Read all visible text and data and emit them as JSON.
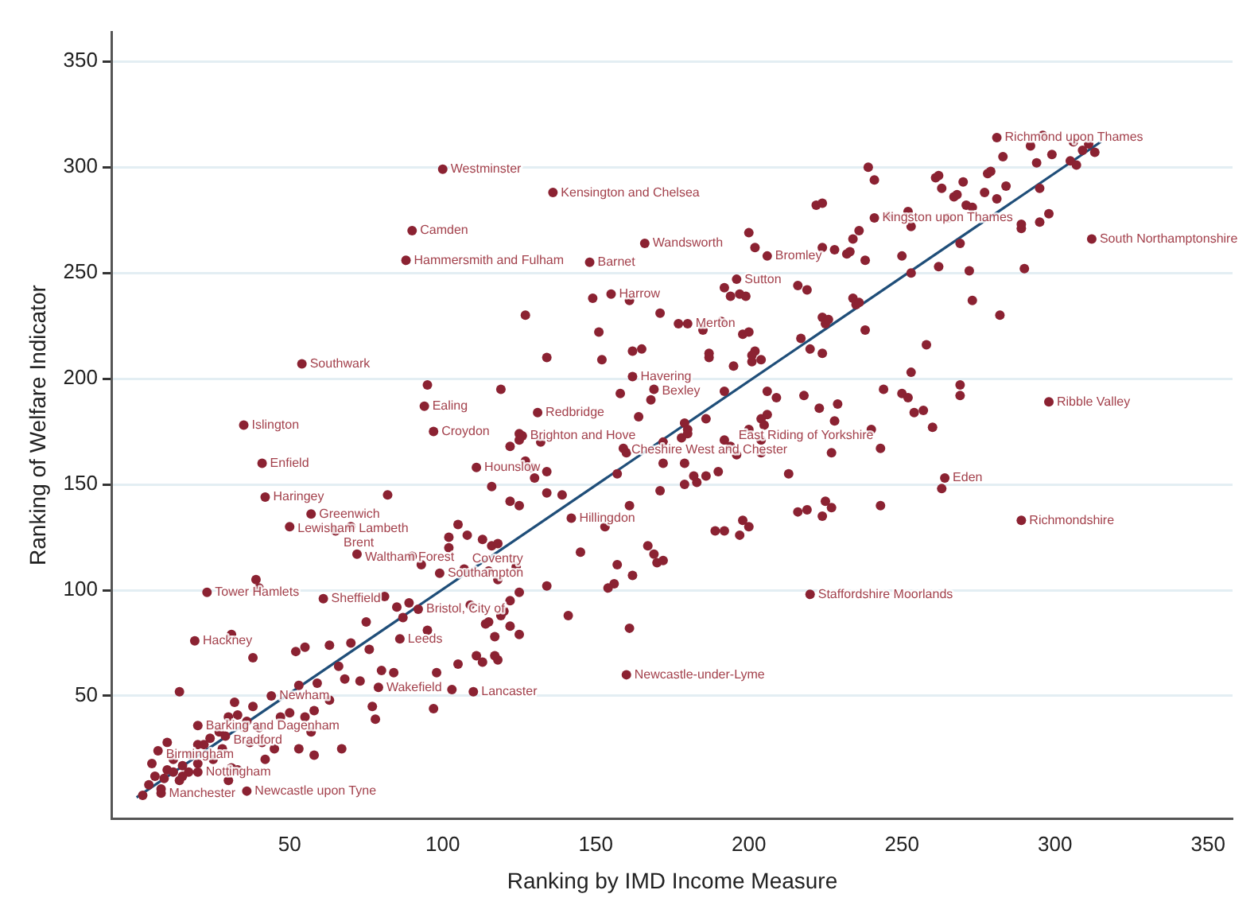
{
  "chart_data": {
    "type": "scatter",
    "xlabel": "Ranking by IMD Income Measure",
    "ylabel": "Ranking of Welfare Indicator",
    "xlim": [
      -8,
      358
    ],
    "ylim": [
      -8,
      364
    ],
    "xticks": [
      50,
      100,
      150,
      200,
      250,
      300,
      350
    ],
    "yticks": [
      50,
      100,
      150,
      200,
      250,
      300,
      350
    ],
    "grid": "y",
    "legend": false,
    "series": [
      {
        "type": "scatter",
        "color": "#8b2232",
        "marker": "circle",
        "x": [
          2,
          4,
          6,
          8,
          10,
          12,
          14,
          15,
          17,
          18,
          20,
          22,
          24,
          25,
          27,
          28,
          30,
          10,
          5,
          35,
          37,
          40,
          42,
          45,
          47,
          33,
          30,
          38,
          14,
          32,
          38,
          31,
          39,
          40,
          52,
          55,
          63,
          70,
          76,
          75,
          66,
          68,
          73,
          59,
          53,
          63,
          58,
          67,
          53,
          58,
          55,
          50,
          57,
          36,
          33,
          41,
          31,
          20,
          9,
          12,
          15,
          77,
          78,
          80,
          84,
          87,
          85,
          89,
          81,
          95,
          98,
          97,
          103,
          105,
          111,
          113,
          118,
          114,
          117,
          122,
          109,
          120,
          122,
          93,
          90,
          115,
          124,
          116,
          113,
          108,
          102,
          102,
          105,
          82,
          125,
          125,
          119,
          95,
          200,
          149,
          161,
          127,
          171,
          177,
          185,
          198,
          151,
          134,
          152,
          162,
          165,
          187,
          195,
          201,
          199,
          158,
          168,
          164,
          179,
          180,
          192,
          209,
          204,
          206,
          223,
          228,
          229,
          257,
          260,
          269,
          125,
          132,
          122,
          127,
          129,
          134,
          130,
          116,
          122,
          134,
          139,
          157,
          160,
          172,
          172,
          192,
          196,
          204,
          227,
          171,
          179,
          183,
          186,
          161,
          153,
          118,
          145,
          216,
          219,
          224,
          225,
          227,
          263,
          157,
          167,
          169,
          170,
          172,
          162,
          156,
          154,
          118,
          125,
          134,
          115,
          119,
          125,
          141,
          161,
          117,
          296,
          292,
          283,
          299,
          306,
          311,
          309,
          313,
          294,
          305,
          307,
          239,
          241,
          261,
          262,
          263,
          270,
          267,
          268,
          271,
          273,
          277,
          278,
          279,
          284,
          281,
          295,
          222,
          224,
          246,
          252,
          253,
          265,
          269,
          236,
          234,
          224,
          228,
          232,
          233,
          238,
          250,
          253,
          262,
          272,
          289,
          289,
          295,
          298,
          290,
          202,
          192,
          194,
          197,
          216,
          219,
          234,
          235,
          236,
          273,
          282,
          191,
          200,
          224,
          225,
          226,
          238,
          217,
          220,
          224,
          202,
          201,
          204,
          187,
          258,
          253,
          244,
          250,
          252,
          254,
          269,
          206,
          218,
          186,
          200,
          205,
          204,
          178,
          180,
          179,
          182,
          190,
          213,
          243,
          189,
          192,
          198,
          200,
          197,
          240,
          243,
          100,
          136,
          90,
          88,
          148,
          166,
          155,
          180,
          196,
          206,
          54,
          162,
          169,
          131,
          126,
          159,
          194,
          35,
          94,
          97,
          111,
          41,
          42,
          57,
          50,
          70,
          65,
          72,
          99,
          107,
          23,
          61,
          92,
          19,
          86,
          79,
          110,
          44,
          20,
          29,
          7,
          20,
          8,
          36,
          142,
          160,
          220,
          264,
          289,
          298,
          312,
          241,
          281
        ],
        "values": [
          3,
          8,
          12,
          6,
          15,
          20,
          10,
          17,
          14,
          22,
          18,
          27,
          30,
          20,
          33,
          25,
          40,
          28,
          18,
          35,
          28,
          35,
          20,
          25,
          40,
          15,
          10,
          45,
          52,
          47,
          68,
          79,
          105,
          101,
          71,
          73,
          74,
          75,
          72,
          85,
          64,
          58,
          57,
          56,
          55,
          48,
          43,
          25,
          25,
          22,
          40,
          42,
          33,
          38,
          41,
          28,
          16,
          27,
          11,
          14,
          12,
          45,
          39,
          62,
          61,
          87,
          92,
          94,
          97,
          81,
          61,
          44,
          53,
          65,
          69,
          66,
          67,
          84,
          78,
          83,
          93,
          90,
          95,
          112,
          116,
          109,
          111,
          121,
          124,
          126,
          125,
          120,
          131,
          145,
          140,
          174,
          195,
          197,
          269,
          238,
          237,
          230,
          231,
          226,
          223,
          221,
          222,
          210,
          209,
          213,
          214,
          212,
          206,
          208,
          239,
          193,
          190,
          182,
          179,
          176,
          194,
          191,
          181,
          183,
          186,
          180,
          188,
          185,
          177,
          192,
          171,
          170,
          168,
          161,
          158,
          156,
          153,
          149,
          142,
          146,
          145,
          155,
          165,
          170,
          160,
          171,
          164,
          165,
          165,
          147,
          150,
          151,
          154,
          140,
          130,
          122,
          118,
          137,
          138,
          135,
          142,
          139,
          148,
          112,
          121,
          117,
          113,
          114,
          107,
          103,
          101,
          105,
          99,
          102,
          85,
          88,
          79,
          88,
          82,
          69,
          315,
          310,
          305,
          306,
          312,
          311,
          308,
          307,
          302,
          303,
          301,
          300,
          294,
          295,
          296,
          290,
          293,
          286,
          287,
          282,
          281,
          288,
          297,
          298,
          291,
          285,
          290,
          282,
          283,
          277,
          279,
          272,
          276,
          264,
          270,
          266,
          262,
          261,
          259,
          260,
          256,
          258,
          250,
          253,
          251,
          271,
          273,
          274,
          278,
          252,
          262,
          243,
          239,
          240,
          244,
          242,
          238,
          235,
          236,
          237,
          230,
          227,
          222,
          229,
          226,
          228,
          223,
          219,
          214,
          212,
          213,
          211,
          209,
          210,
          216,
          203,
          195,
          193,
          191,
          184,
          197,
          194,
          192,
          181,
          176,
          178,
          171,
          172,
          174,
          160,
          154,
          156,
          155,
          140,
          128,
          128,
          133,
          130,
          126,
          176,
          167,
          299,
          288,
          270,
          256,
          255,
          264,
          240,
          226,
          247,
          258,
          207,
          201,
          195,
          184,
          173,
          167,
          168,
          178,
          187,
          175,
          158,
          160,
          144,
          136,
          130,
          130,
          128,
          117,
          108,
          110,
          99,
          96,
          91,
          76,
          77,
          54,
          52,
          50,
          36,
          31,
          24,
          14,
          4,
          5,
          134,
          60,
          98,
          153,
          133,
          189,
          266,
          276,
          314
        ]
      },
      {
        "type": "line",
        "color": "#1f4e79",
        "marker": "none",
        "line_style": "solid",
        "x": [
          0,
          315
        ],
        "values": [
          2,
          312
        ]
      }
    ],
    "annotations": [
      {
        "text": "Westminster",
        "x": 100,
        "y": 299
      },
      {
        "text": "Kensington and Chelsea",
        "x": 136,
        "y": 288
      },
      {
        "text": "Camden",
        "x": 90,
        "y": 270
      },
      {
        "text": "Hammersmith and Fulham",
        "x": 88,
        "y": 256
      },
      {
        "text": "Barnet",
        "x": 148,
        "y": 255
      },
      {
        "text": "Wandsworth",
        "x": 166,
        "y": 264
      },
      {
        "text": "Harrow",
        "x": 155,
        "y": 240
      },
      {
        "text": "Merton",
        "x": 180,
        "y": 226
      },
      {
        "text": "Sutton",
        "x": 196,
        "y": 247
      },
      {
        "text": "Bromley",
        "x": 206,
        "y": 258
      },
      {
        "text": "Southwark",
        "x": 54,
        "y": 207
      },
      {
        "text": "Havering",
        "x": 162,
        "y": 201
      },
      {
        "text": "Bexley",
        "x": 169,
        "y": 195
      },
      {
        "text": "Redbridge",
        "x": 131,
        "y": 184
      },
      {
        "text": "Brighton and Hove",
        "x": 126,
        "y": 173
      },
      {
        "text": "Cheshire West and Chester",
        "x": 159,
        "y": 167
      },
      {
        "text": "East Riding of Yorkshire",
        "x": 194,
        "y": 168
      },
      {
        "text": "Islington",
        "x": 35,
        "y": 178
      },
      {
        "text": "Ealing",
        "x": 94,
        "y": 187
      },
      {
        "text": "Croydon",
        "x": 97,
        "y": 175
      },
      {
        "text": "Hounslow",
        "x": 111,
        "y": 158
      },
      {
        "text": "Enfield",
        "x": 41,
        "y": 160
      },
      {
        "text": "Haringey",
        "x": 42,
        "y": 144
      },
      {
        "text": "Greenwich",
        "x": 57,
        "y": 136
      },
      {
        "text": "Lewisham",
        "x": 50,
        "y": 130
      },
      {
        "text": "Lambeth",
        "x": 70,
        "y": 130
      },
      {
        "text": "Brent",
        "x": 65,
        "y": 128
      },
      {
        "text": "Waltham Forest",
        "x": 72,
        "y": 117
      },
      {
        "text": "Southampton",
        "x": 99,
        "y": 108
      },
      {
        "text": "Coventry",
        "x": 107,
        "y": 110
      },
      {
        "text": "Tower Hamlets",
        "x": 23,
        "y": 99
      },
      {
        "text": "Sheffield",
        "x": 61,
        "y": 96
      },
      {
        "text": "Bristol, City of",
        "x": 92,
        "y": 91
      },
      {
        "text": "Hackney",
        "x": 19,
        "y": 76
      },
      {
        "text": "Leeds",
        "x": 86,
        "y": 77
      },
      {
        "text": "Wakefield",
        "x": 79,
        "y": 54
      },
      {
        "text": "Lancaster",
        "x": 110,
        "y": 52
      },
      {
        "text": "Newham",
        "x": 44,
        "y": 50
      },
      {
        "text": "Barking and Dagenham",
        "x": 20,
        "y": 36
      },
      {
        "text": "Bradford",
        "x": 29,
        "y": 31
      },
      {
        "text": "Birmingham",
        "x": 7,
        "y": 24
      },
      {
        "text": "Nottingham",
        "x": 20,
        "y": 14
      },
      {
        "text": "Manchester",
        "x": 8,
        "y": 4
      },
      {
        "text": "Newcastle upon Tyne",
        "x": 36,
        "y": 5
      },
      {
        "text": "Hillingdon",
        "x": 142,
        "y": 134
      },
      {
        "text": "Newcastle-under-Lyme",
        "x": 160,
        "y": 60
      },
      {
        "text": "Staffordshire Moorlands",
        "x": 220,
        "y": 98
      },
      {
        "text": "Eden",
        "x": 264,
        "y": 153
      },
      {
        "text": "Richmondshire",
        "x": 289,
        "y": 133
      },
      {
        "text": "Ribble Valley",
        "x": 298,
        "y": 189
      },
      {
        "text": "South Northamptonshire",
        "x": 312,
        "y": 266
      },
      {
        "text": "Kingston upon Thames",
        "x": 241,
        "y": 276
      },
      {
        "text": "Richmond upon Thames",
        "x": 281,
        "y": 314
      }
    ]
  }
}
